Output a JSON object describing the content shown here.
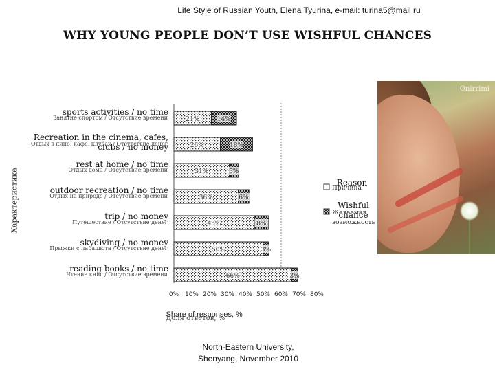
{
  "header": {
    "credit": "Life Style of Russian Youth, Elena Tyurina, e-mail: turina5@mail.ru"
  },
  "title": "WHY YOUNG PEOPLE DON’T USE WISHFUL CHANCES",
  "footer": {
    "line1": "North-Eastern University,",
    "line2": "Shenyang, November 2010"
  },
  "photo": {
    "watermark": "Onirrimi"
  },
  "chart_data": {
    "type": "bar",
    "stacked": true,
    "orientation": "horizontal",
    "ylabel": "Характеристика",
    "xlabel": "Share of responses, %",
    "xlabel_ru": "Доля ответов, %",
    "xlim": [
      0,
      80
    ],
    "xticks": [
      "0%",
      "10%",
      "20%",
      "30%",
      "40%",
      "50%",
      "60%",
      "70%",
      "80%"
    ],
    "categories": [
      {
        "en": "sports activities / no time",
        "ru": "Занятие спортом / Отсутствие времени"
      },
      {
        "en": "Recreation in the cinema, cafes, clubs / no money",
        "en_lines": [
          "Recreation in the cinema, cafes,",
          "clubs / no money"
        ],
        "ru": "Отдых в кино, кафе, клубах / Отсутствие денег"
      },
      {
        "en": "rest at home / no time",
        "ru": "Отдых дома / Отсутствие времени"
      },
      {
        "en": "outdoor recreation / no time",
        "ru": "Отдых на природе / Отсутствие времени"
      },
      {
        "en": "trip / no money",
        "ru": "Путешествие / Отсутствие денег"
      },
      {
        "en": "skydiving / no money",
        "ru": "Прыжки с парашюта / Отсутствие денег"
      },
      {
        "en": "reading books / no time",
        "ru": "Чтение книг / Отсутствие времени"
      }
    ],
    "series": [
      {
        "name": "Reason",
        "name_ru": "Причина",
        "pattern": "dots",
        "values": [
          21,
          26,
          31,
          36,
          45,
          50,
          66
        ],
        "labels": [
          "21%",
          "26%",
          "31%",
          "36%",
          "45%",
          "50%",
          "66%"
        ]
      },
      {
        "name": "Wishful chance",
        "name_ru": "Желаемая возможность",
        "pattern": "cross",
        "values": [
          14,
          18,
          5,
          6,
          8,
          3,
          3
        ],
        "labels": [
          "14%",
          "18%",
          "5%",
          "6%",
          "8%",
          "3%",
          "3%"
        ]
      }
    ],
    "legend": "right",
    "grid": false
  }
}
